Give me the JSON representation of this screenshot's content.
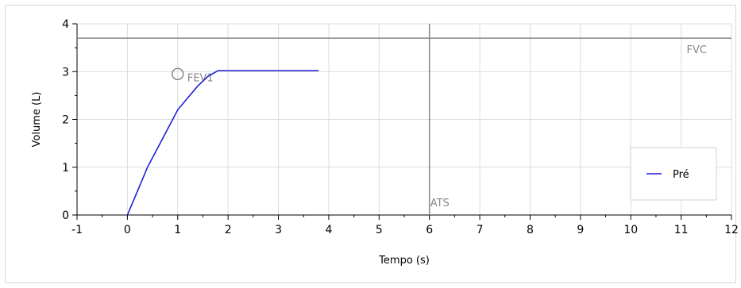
{
  "chart_data": {
    "type": "line",
    "title": "",
    "xlabel": "Tempo (s)",
    "ylabel": "Volume (L)",
    "xlim": [
      -1,
      12
    ],
    "ylim": [
      0,
      4
    ],
    "x_ticks": [
      "-1",
      "0",
      "1",
      "2",
      "3",
      "4",
      "5",
      "6",
      "7",
      "8",
      "9",
      "10",
      "11",
      "12"
    ],
    "y_ticks": [
      "0",
      "1",
      "2",
      "3",
      "4"
    ],
    "grid": true,
    "legend": {
      "placement": "bottom-right",
      "entries": [
        "Pré"
      ]
    },
    "series": [
      {
        "name": "Pré",
        "color": "#1f1fd6",
        "x": [
          0,
          0.2,
          0.4,
          0.6,
          0.8,
          1.0,
          1.2,
          1.4,
          1.6,
          1.8,
          2.0,
          2.5,
          3.0,
          3.8
        ],
        "y": [
          0,
          0.5,
          1.0,
          1.4,
          1.8,
          2.2,
          2.45,
          2.7,
          2.9,
          3.02,
          3.02,
          3.02,
          3.02,
          3.02
        ]
      }
    ],
    "annotations": {
      "fvc": {
        "label": "FVC",
        "y": 3.7,
        "color": "#888888"
      },
      "ats": {
        "label": "ATS",
        "x": 6,
        "color": "#888888"
      },
      "fev1": {
        "label": "FEV1",
        "x": 1,
        "y": 2.95,
        "marker": "circle",
        "color": "#888888"
      }
    }
  }
}
